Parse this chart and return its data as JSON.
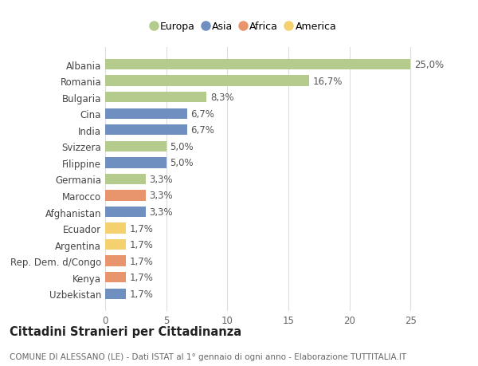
{
  "countries": [
    "Albania",
    "Romania",
    "Bulgaria",
    "Cina",
    "India",
    "Svizzera",
    "Filippine",
    "Germania",
    "Marocco",
    "Afghanistan",
    "Ecuador",
    "Argentina",
    "Rep. Dem. d/Congo",
    "Kenya",
    "Uzbekistan"
  ],
  "values": [
    25.0,
    16.7,
    8.3,
    6.7,
    6.7,
    5.0,
    5.0,
    3.3,
    3.3,
    3.3,
    1.7,
    1.7,
    1.7,
    1.7,
    1.7
  ],
  "labels": [
    "25,0%",
    "16,7%",
    "8,3%",
    "6,7%",
    "6,7%",
    "5,0%",
    "5,0%",
    "3,3%",
    "3,3%",
    "3,3%",
    "1,7%",
    "1,7%",
    "1,7%",
    "1,7%",
    "1,7%"
  ],
  "continents": [
    "Europa",
    "Europa",
    "Europa",
    "Asia",
    "Asia",
    "Europa",
    "Asia",
    "Europa",
    "Africa",
    "Asia",
    "America",
    "America",
    "Africa",
    "Africa",
    "Asia"
  ],
  "colors": {
    "Europa": "#b5ca8d",
    "Asia": "#6e8fbf",
    "Africa": "#e8956d",
    "America": "#f5d06e"
  },
  "legend_order": [
    "Europa",
    "Asia",
    "Africa",
    "America"
  ],
  "title": "Cittadini Stranieri per Cittadinanza",
  "subtitle": "COMUNE DI ALESSANO (LE) - Dati ISTAT al 1° gennaio di ogni anno - Elaborazione TUTTITALIA.IT",
  "xlim": [
    0,
    27
  ],
  "xticks": [
    0,
    5,
    10,
    15,
    20,
    25
  ],
  "bg_color": "#ffffff",
  "grid_color": "#dddddd",
  "bar_height": 0.65,
  "label_fontsize": 8.5,
  "tick_fontsize": 8.5,
  "title_fontsize": 10.5,
  "subtitle_fontsize": 7.5
}
